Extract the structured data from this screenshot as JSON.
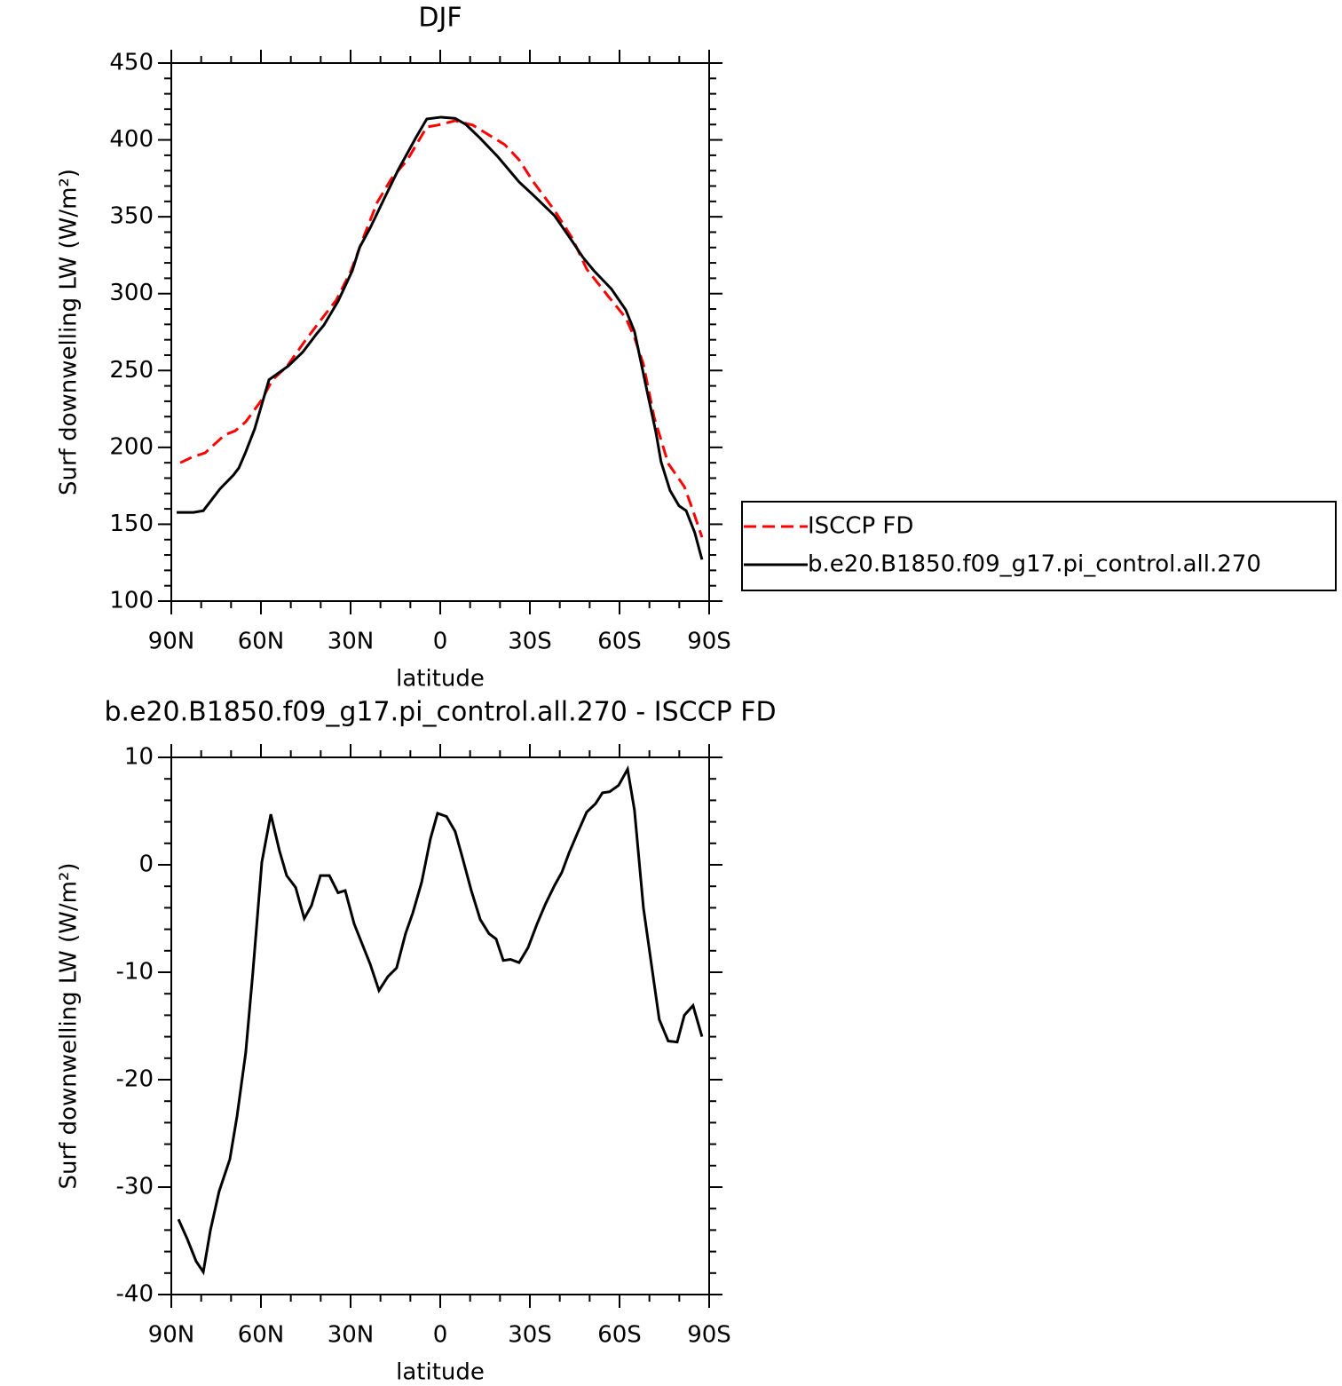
{
  "chart_data": [
    {
      "type": "line",
      "title": "DJF",
      "xlabel": "latitude",
      "ylabel": "Surf downwelling LW (W/m²)",
      "xlim": [
        90,
        -90
      ],
      "xticks": [
        {
          "value": 90,
          "label": "90N"
        },
        {
          "value": 60,
          "label": "60N"
        },
        {
          "value": 30,
          "label": "30N"
        },
        0,
        {
          "value": -30,
          "label": "30S"
        },
        {
          "value": -60,
          "label": "60S"
        },
        {
          "value": -90,
          "label": "90S"
        }
      ],
      "ylim": [
        100,
        450
      ],
      "yticks": [
        100,
        150,
        200,
        250,
        300,
        350,
        400,
        450
      ],
      "legend": "outside-right",
      "series": [
        {
          "name": "ISCCP FD",
          "color": "#ff0000",
          "style": "dashed",
          "x": [
            87.0,
            83.2,
            78.7,
            72.2,
            68.6,
            65.1,
            59.7,
            56.1,
            51.4,
            45.5,
            39.5,
            34.8,
            30.0,
            25.2,
            21.1,
            16.3,
            11.0,
            4.5,
            0.9,
            -5.0,
            -10.9,
            -21.6,
            -26.4,
            -31.2,
            -38.3,
            -44.2,
            -49.0,
            -56.1,
            -62.1,
            -65.0,
            -68.0,
            -71.6,
            -76.3,
            -81.7,
            -84.6,
            -87.6
          ],
          "values": [
            190,
            193.5,
            196.4,
            208,
            210.8,
            216.6,
            231,
            244,
            252.4,
            268.6,
            284,
            295.8,
            314.2,
            339,
            359.3,
            374.9,
            387,
            408.4,
            409.6,
            412.5,
            409.6,
            396.9,
            387,
            372.6,
            354,
            336,
            316,
            298.6,
            284.2,
            271.5,
            254,
            219.5,
            189.5,
            174.4,
            158.8,
            141.5
          ]
        },
        {
          "name": "b.e20.B1850.f09_g17.pi_control.all.270",
          "color": "#000000",
          "style": "solid",
          "x": [
            88.2,
            82.6,
            79.3,
            73.7,
            69.2,
            67.4,
            65.1,
            62.1,
            59.7,
            57.3,
            54.4,
            50.8,
            46.0,
            41.3,
            38.9,
            34.2,
            29.4,
            27.0,
            23.5,
            18.7,
            14.0,
            8.0,
            4.5,
            -0.3,
            -5.0,
            -8.6,
            -13.4,
            -19.3,
            -26.4,
            -31.2,
            -38.3,
            -44.2,
            -47.8,
            -51.4,
            -57.3,
            -62.1,
            -65.0,
            -69.2,
            -72.2,
            -73.9,
            -76.9,
            -79.9,
            -82.3,
            -85.2,
            -87.6
          ],
          "values": [
            157.7,
            157.7,
            158.8,
            173,
            182,
            186.6,
            197,
            212,
            228,
            244,
            248,
            253,
            262,
            274,
            279.6,
            295,
            315,
            330,
            342.5,
            362,
            380.7,
            402,
            413.6,
            414.8,
            414,
            410,
            401,
            389,
            372.6,
            364,
            350.6,
            334,
            323.5,
            315,
            303,
            289.4,
            275.5,
            236.8,
            209.6,
            190.6,
            172,
            162,
            158.8,
            144.4,
            127
          ]
        }
      ]
    },
    {
      "type": "line",
      "title": "b.e20.B1850.f09_g17.pi_control.all.270 - ISCCP FD",
      "xlabel": "latitude",
      "ylabel": "Surf downwelling LW (W/m²)",
      "xlim": [
        90,
        -90
      ],
      "xticks": [
        {
          "value": 90,
          "label": "90N"
        },
        {
          "value": 60,
          "label": "60N"
        },
        {
          "value": 30,
          "label": "30N"
        },
        0,
        {
          "value": -30,
          "label": "30S"
        },
        {
          "value": -60,
          "label": "60S"
        },
        {
          "value": -90,
          "label": "90S"
        }
      ],
      "ylim": [
        -40,
        10
      ],
      "yticks": [
        -40,
        -30,
        -20,
        -10,
        0,
        10
      ],
      "series": [
        {
          "color": "#000000",
          "style": "solid",
          "x": [
            87.6,
            84.7,
            81.7,
            79.3,
            76.9,
            74.0,
            70.4,
            68.0,
            65.1,
            62.7,
            59.7,
            56.7,
            53.8,
            51.4,
            48.4,
            45.5,
            43.1,
            40.1,
            37.1,
            34.2,
            31.8,
            28.8,
            25.8,
            23.5,
            20.5,
            17.5,
            14.6,
            11.6,
            9.2,
            6.2,
            3.3,
            0.9,
            -2.1,
            -5.0,
            -7.4,
            -10.4,
            -13.4,
            -16.3,
            -18.7,
            -21.1,
            -23.5,
            -26.4,
            -29.4,
            -32.4,
            -35.3,
            -38.3,
            -40.7,
            -43.1,
            -46.0,
            -49.0,
            -52.0,
            -54.3,
            -56.7,
            -59.7,
            -62.7,
            -65.0,
            -68.0,
            -71.0,
            -73.3,
            -76.3,
            -79.3,
            -81.7,
            -84.6,
            -87.6
          ],
          "values": [
            -33.0,
            -34.8,
            -36.9,
            -37.9,
            -34.0,
            -30.4,
            -27.4,
            -23.4,
            -17.5,
            -10.0,
            0.25,
            4.7,
            1.3,
            -1.0,
            -2.1,
            -5.0,
            -3.8,
            -1.0,
            -1.0,
            -2.6,
            -2.4,
            -5.5,
            -7.6,
            -9.2,
            -11.7,
            -10.4,
            -9.6,
            -6.4,
            -4.5,
            -1.6,
            2.4,
            4.8,
            4.5,
            3.1,
            0.7,
            -2.4,
            -5.1,
            -6.4,
            -6.9,
            -8.9,
            -8.8,
            -9.1,
            -7.7,
            -5.5,
            -3.6,
            -1.9,
            -0.7,
            1.1,
            3.0,
            4.9,
            5.7,
            6.7,
            6.8,
            7.4,
            8.9,
            5.1,
            -4.0,
            -9.9,
            -14.4,
            -16.4,
            -16.5,
            -14.0,
            -13.1,
            -16.0
          ]
        }
      ]
    }
  ]
}
